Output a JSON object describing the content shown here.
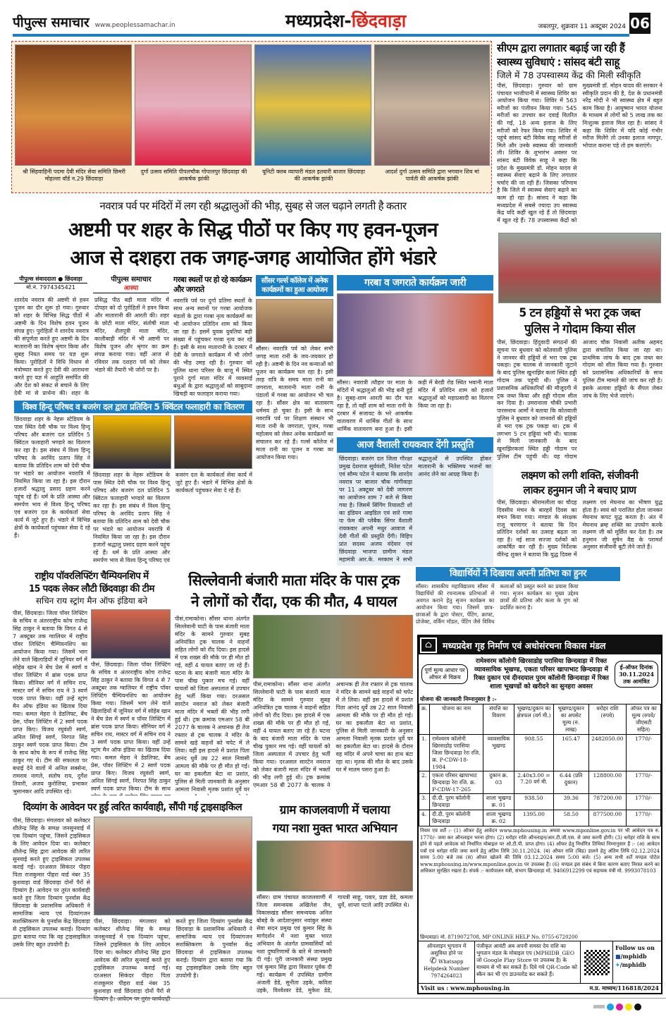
{
  "masthead": {
    "logo": "पीपुल्स समाचार",
    "website": "www.peoplessamachar.in",
    "section_prefix": "मध्यप्रदेश-",
    "section_city": "छिंदवाड़ा",
    "dateline": "जबलपुर, शुक्रवार 11 अक्टूबर 2024",
    "page_no": "06",
    "colors": {
      "accent": "#e2231a",
      "rule": "#1d7fc4"
    }
  },
  "photo_strip": {
    "captions": [
      "श्री सिंहवाहिनी पदमा देवी मंदिर सेवा समिति छिमरी मोहल्ला वॉर्ड न.29 छिंदवाड़ा",
      "दुर्गा उत्सव समिति पीपलचौक गोपालपुर छिंदवाड़ा की आकर्षक झांकी",
      "यूनिटी क्लब व्यापारी मंडल इतवारी बाजार छिंदवाड़ा की आकर्षक झांकी",
      "आदर्श दुर्गा उत्सव समिति द्वारा भगवान शिव मां पार्वती की आकर्षक झांकी"
    ]
  },
  "lead": {
    "kicker": "नवरात्र पर्व पर मंदिरों में लग रही श्रद्धालुओं की भीड़, सुबह से जल चढ़ाने लगती है कतार",
    "headline1": "अष्टमी पर शहर के सिद्ध पीठों पर किए गए हवन-पूजन",
    "headline2": "आज से दशहरा तक जगह-जगह आयोजित होंगे भंडारे",
    "byline": "पीपुल्स संवाददाता ● छिंदवाड़ा",
    "phone": "मो.नं. 7974345421",
    "logo_box": "पीपुल्स समाचार",
    "logo_tag": "आस्था",
    "body": "शारदेय नवरात्र की अष्टमी से हवन पूजन का दौर शुरू हो गया। गुरुवार को शहर के विभिन्न सिद्ध पीठों में अष्टमी के दिन विशेष हवन पूजन संपन्न हुए। पुरोहितों ने शारदेय नवरात्र की संपूर्णता करते हुए अष्टमी के दिन मातारानी का विशेष श्रृंगार किया और सुबह नियत समय पर यज्ञ शुरू किया। पुरोहितों ने विधि विधान से मंत्रोच्चार करते हुए देवी की आराधना करते हुए यज्ञ में आहुति समर्पित की और देश को संकट से बचाने के लिए देवी मां से प्रार्थना की। शहर के प्रसिद्ध पीठ बड़ी माता मंदिर में दोपहर को दो पुरोहितों ने हवन किया और मातारानी की आरती की। शहर के छोटी माता मंदिर, संतोषी माता मंदिर, शैलपुत्री माता मंदिर, कालीबाड़ी मंदिर में भी अष्टमी पर विशेष पूजन और श्रृंगार का क्रम संपन्न कराया गया। वहीं आज से रविवार तक दशहरा पर्व को लेकर भंडारे की तैयारी भी जोरों पर है।",
    "sub_head": "गरबा स्थलों पर हो रहे कार्यक्रम और जगराते",
    "sub_body": "नवरात्रि पर्व पर दुर्गा प्रतिमा स्थलों के साथ अन्य स्थानों पर गरबा आयोजक मंडलों के द्वारा गरबा नृत्य कार्यक्रमों का भी आयोजन प्रतिदिन शाम को किया जा रहा है। इसमें युवक युवतियां बड़ी संख्या में पहुंचकर गरबा नृत्य कर रहे हैं। इसी के साथ मातारानी के दरबार में देवी के जगराते कार्यक्रम में भी लोगों की भीड़ उमड़ रही है। गुरुवार को पुलिस थाना परिसर के बाजू में स्थित पुराने दुर्गा माता मंदिर में व्यवसाई बंधुओं के द्वारा श्रद्धालुओं को साबूदाना खिचड़ी का फलाहार कराया गया।"
  },
  "sausar_college": {
    "title": "सौंसर गर्ल्स कॉलेज में अनेक कार्यक्रमों का हुआ आयोजन",
    "body": "सौंसर। नवरात्रि पर्व को लेकर सभी जगह माता रानी के जय-जयकार हो रही है। अष्टमी के दिन नव कन्याओं को पूजन का कार्यक्रम चल रहा है। इसी तरह रात्रि के समय माता रानी का जगराता, मातारानी माता रानी के पंडालों में गरबा का आयोजन भी चल रहा है। सौंसर क्षेत्र का वातावरण धर्ममय हो चुका है। इसी के साथ नवरात्रि पर्व पर शिक्षण संस्थान भी माता रानी के जगराता, पूजन, गरबा महोत्सव को लेकर अनेक कार्यक्रमों का संचालन कर रहे हैं। गर्ल्स कॉलेज में माता रानी का पूजन व गरबा का आयोजन किया गया।"
  },
  "garba": {
    "title": "गरबा व जगराते कार्यक्रम जारी",
    "body": "सौंसर। नवरात्री त्यौहार पर माता के मंदिरों में श्रद्धालुओं की भीड़ बनी हुई है। सुबह-शाम आरती का दौर चल रहा है, तो वहीं शाम को माता रानी के दरबार में सजावट के भरे आकर्षक वातावरण में धार्मिक गीतों के साथ धार्मिक वातावरण बना हुआ है। इसी कड़ी में बेरडी रोड स्थित भवानी माता मंदिर में प्रतिदिन शाम को हजारों श्रद्धालुओं को महाप्रसादी का वितरण किया जा रहा है।"
  },
  "vaishali": {
    "title": "आज वैशाली रायकवार देंगी प्रस्तुति",
    "body": "छिंदवाड़ा। बजरंग दल जिला गौरक्षा प्रमुख देशराज सूर्यवंशी, नितेश पटेल एवं सौम्य पटेल ने बताया कि शारदेय नवरात्र पर बाजार चौक गांगीवाड़ा पर 11 अक्टूबर को देवी जागरण का आयोजन शाम 7 बजे से किया गया है। जिसमें सिंगिंग रियालटी शो का इंडियन आइडिल एवं सारे गामा पा फेम की प्लेबैक सिंगर वैशाली रायकवार अपनी मधुर आवाज में देवी गीतों की प्रस्तुति देंगी। विहिप प्रांत सदस्य अजय वंदेवार एवं छिंदवाड़ा भाजपा ग्रामीण मंडल महामंत्री आर.के. मरकाम ने सभी श्रद्धालुओं से उपस्थित होकर मातारानी के भक्तिमय भजनों का आनंद लेने का आग्रह किया है।"
  },
  "vhp": {
    "title": "विश्व हिन्दू परिषद व बजरंग दल द्वारा प्रतिदिन 5 क्विंटल फलाहारी का वितरण",
    "body": "छिंदवाड़ा शहर के नेहरू स्टेडियम के पास स्थित देवी चौक पर विश्व हिन्दू परिषद और बजरंग दल प्रतिदिन 5 क्विंटल फलाहारी भण्डारे का वितरण कर रहा है। इस संबंध में विश्व हिन्दू परिषद के अरविंद प्रताप सिंह ने बताया कि प्रतिदिन शाम को देवी चौक पर भंडारे का आयोजन नवरात्रि में नियमित किया जा रहा है। इस दौरान हजारों श्रद्धालु प्रसाद ग्रहण करने पहुंच रहे हैं। धर्म के प्रति आस्था और समर्पण भाव से विश्व हिन्दू परिषद एवं बजरंग दल के कार्यकर्ता सेवा कार्य में जुटे हुए हैं। भंडारे में विभिन्न क्षेत्रों के कार्यकर्ता पहुंचकर सेवा दे रहे हैं।"
  },
  "health": {
    "headline1": "सीएम द्वारा लगातार बढ़ाई जा रही हैं",
    "headline2": "स्वास्थ्य सुविधाएं : सांसद बंटी साहू",
    "subhead": "जिले में 78 उपस्वास्थ्य केंद्र की मिली स्वीकृति",
    "body": "पीसं, छिंदवाड़ा। गुरुवार को ग्राम पंचायत भाजीपानी में स्वास्थ्य शिविर का आयोजन किया गया। शिविर में 563 मरीजों का पंजीयन किया गया। 545 मरीजों का उपचार कर दवाई वितरित की गई, 18 अन्य इलाज के लिए मरीजों को रेफर किया गया। शिविर में पहुंचे सांसद बंटी विवेक साहू मरीजों से मिले और उनके स्वास्थ्य की जानकारी ली। शिविर के शुभारंभ अवसर पर सांसद बंटी विवेक साहू ने कहा कि प्रदेश के मुख्यमंत्री डॉ. मोहन यादव से स्वास्थ्य सेवाएं बढ़ाने के लिए लगातार चर्चाएं की जा रही हैं। जिसका परिणाम है कि जिले में स्वास्थ्य सेवाएं बढ़ाने का काम हो रहा है। सांसद ने कहा कि मध्यप्रदेश में सबसे ज्यादा उप स्वास्थ्य केंद्र यदि कहीं खुल रहे हैं तो छिंदवाड़ा में खुल रहे हैं। 78 उपस्वास्थ्य केंद्रों को मुख्यमंत्री डॉ. मोहन यादव की सरकार ने स्वीकृति प्रदान की है, देश के प्रधानमंत्री नरेंद्र मोदी ने भी स्वास्थ्य क्षेत्र में बहुत काम किया है। आयुष्मान भारत योजना के माध्यम से लोगों को 5 लाख तक का निःशुल्क इलाज मिल रहा है। सांसद ने कहा कि शिविर में यदि कोई गंभीर मरीज मिलेंगे तो उनका इलाज नागपुर, भोपाल कराना पड़े तो हम कराएंगे।"
  },
  "bones": {
    "headline1": "5 टन हड्डियों से भरा ट्रक जब्त",
    "headline2": "पुलिस ने गोदाम किया सील",
    "body": "पीसं, छिंदवाड़ा। हिंदुवादी संगठनों की सूचना पर बुधवार को कोतवाली पुलिस ने जानवर की हड्डियों से भरा एक ट्रक पकड़ा। ट्रक चालक से जानकारी जुटाने के बाद पुलिस खुनाझिर कलां स्थित हड्डी गोदाम तक पहुंची थी। पुलिस ने प्रशासनिक अधिकारियों की मौजूदगी में ट्रक जब्त किया और हड्डी गोदाम सील कर दिया है। उमरानाला चौकी प्रभारी पारसनाथ आर्मो ने बताया कि कोतवाली पुलिस ने बुधवार को जानवरों की हड्डियों से भरा एक ट्रक पकड़ा था। ट्रक में लगभग 5 टन हड्डियां भरी थी। चालक से मिली जानकारी के बाद खुनाझिरकलां स्थित हड्डी गोदाम पर पुलिस टीम पहुंची थी। यह गोदाम आजाद चौक निवासी अतीक अहमद द्वारा संचालित किया जा रहा था। प्राथमिक जांच के बाद ट्रक जब्त कर गोदाम को सील किया गया है। गुरुवार को प्रशासनिक अधिकारियों के साथ पुलिस टीम मामले की जांच कर रही है। इसके अलावा हड्डियों के सैंपल लेकर जांच के लिए भेजे जाएंगे।"
  },
  "lakshman": {
    "headline1": "लक्ष्मण को लगी शक्ति, संजीवनी",
    "headline2": "लाकर हनुमान जी ने बचाए प्राण",
    "body": "पीसं, छिंदवाड़ा। श्रीरामलीला का चौदह दिवसीय मंचन के बारहवें दिवस का मंचन किया गया। मण्डल के संरक्षक राजू चरणागर ने बताया कि दिन प्रतिदिन दर्शकों का उत्साह बढ़ता जा रहा है। नई साज सज्जा दर्शकों को आकर्षित कर रही है। मुख्य निर्देशक वीरेन्द्र शुक्ल ने बताया कि युद्ध दिवस में लक्ष्मण एवं मेघनाथ का भीषण युद्ध होता है। स्वयं को पराजित होता जानकर मेघनाथ कपट युद्ध करता है। अंत में मेघनाथ ब्रम्ह शक्ति का उपयोग करके लक्ष्मण जी को मूर्छित कर देता है। तब हनुमान जी सुषेन वैद्य के परामर्श अनुसार संजीवनी बूटी लेने जाते हैं।"
  },
  "students": {
    "title": "विद्यार्थियों ने दिखाया अपनी प्रतिभा का हुनर",
    "body": "सौंसर। शासकीय महाविद्यालय सौंसर में विद्यार्थियों की रचनात्मक प्रतिभाओं से अवगत कराने हेतु सृजन कार्यक्रम का आयोजन किया गया। जिसमें छात्र-छात्राओं के द्वारा पोस्टर, पेंटिंग, क्राफ्ट, प्रोजेक्ट, वर्किंग मॉडल, पेंटिंग जैसे विविध कलाओं को प्रस्तुत करने का प्रयास किया गया। सृजन कार्यक्रम का मुख्य उद्देश्य छात्रों की प्रतिभा और कला के गुण को प्रदर्शित करना है।"
  },
  "powerlifting": {
    "headline1": "राष्ट्रीय पॉवरलिफ्टिंग चैम्पियनशिप में",
    "headline2": "15 पदक लेकर लौटी छिंदवाड़ा की टीम",
    "subhead": "सचिन राय स्ट्रांग मैन ऑफ इंडिया बने",
    "body": "पीसं, छिंदवाड़ा। जिला पॉवर लिफ्टिंग के सचिव व अंतरराष्ट्रीय कोच राजेन्द्र सिंह ठाकुर ने बताया कि विगत 4 से 7 अक्टूबर तक ग्वालियर में राष्ट्रीय पॉवर लिफ्टिंग चैम्पियनशिप का आयोजन किया गया। जिसमें भाग लेने वाले खिलाड़ियों में जूनियर वर्ग में सोहेब खान ने बेंच प्रेस में स्वर्ण व पॉवर लिफ्टिंग में ब्रांस पदक प्राप्त किया। सीनियर वर्ग में सचिन राय, मास्टर वर्ग में सचिन राय ने 3 स्वर्ण पदक प्राप्त किया। वहीं उन्हें स्ट्रांग मैन ऑफ इंडिया का खिताब दिया गया। कमल मेहरा ने डेडलिफ्ट, बेंच प्रेस, पॉवर लिफ्टिंग में 2 स्वर्ण पदक प्राप्त किए। विजय रघुवंशी स्वर्ण, अनिल सिंगई स्वर्ण, निरपत सिंह ठाकुर स्वर्ण पदक प्राप्त किया। टीम के साथ कोच के रूप में राजेन्द्र सिंह ठाकुर गए थे। टीम की सफलता पर बधाई देने वालों में अनिल सक्सेना, रामराव नागले, संतोष राय, दुर्गेश तिवारी, अजय कुरोलिया, प्रभाकर भुसानकर आदि उपस्थित रहे।"
  },
  "silvani": {
    "headline1": "सिल्लेवानी बंजारी माता मंदिर के पास ट्रक",
    "headline2": "ने लोगों को रौंदा, एक की मौत, 4 घायल",
    "body": "पीसं,रामाकोना। सौंसर थाना अंतर्गत सिल्लेवानी घाटी के पास बंजारी माता मंदिर के सामने गुरुवार सुबह अनियंत्रित ट्रक चालक ने वाहनों सहित लोगों को रौंद दिया। इस हादसे में एक शख्स की मौके पर ही मौत हो गई, वहीं 4 घायल बताए जा रहे हैं। घटना के बाद बंजारी माता मंदिर के पास चीख पुकार मच गई। वहीं घायलों को जिला अस्पताल में उपचार हेतु भर्ती किया गया। दरअसल सारटेन नवराज को लेकर बंजारी माता मंदिर में भक्तों की भीड़ लगी हुई थी। ट्रक क्रमांक एमआर 58 बी 2077 के चालक ने अचानक ही तेज रफ्तार से ट्रक चालक ने मंदिर के सामने खड़े वाहनों को चपेट में ले लिया। वहीं इस हादसे में प्रशांत पिता आनंद धुर्वे उम्र 22 साल निवासी आमला की मौके पर ही मौत हो गई। घर का इकलौता बेटा था प्रशांत, पुलिस से मिली जानकारी के अनुसार आमला निवासी मृतक प्रशांत धुर्वे घर का इकलौता बेटा था। हादसे के दौरान वह मंदिर में अपने चाचा का हाथ बंटा रहा था। मृतक की मौत के बाद उसके घर में मातम पसरा हुआ है।"
  },
  "divyang": {
    "headline": "दिव्यांग के आवेदन पर हुई त्वरित कार्यवाही, सौंपी गई ट्राइसाइकिल",
    "body": "पीसं, छिंदवाड़ा। मंगलवार को कलेक्टर शीलेन्द्र सिंह के समक्ष जनसुनवाई में एक दिव्यांग पहुंचा, जिसने ट्राइसिकल के लिए आवेदन दिया था। कलेक्टर शीलेन्द्र सिंह द्वारा आवेदक की त्वरित सुनवाई करते हुए ट्राइसिकल उपलब्ध कराई गई। दरअसल सिकंदर पीहरा पिता राजकुमार पीहरा वार्ड नंबर 35 कुशवाहा वार्ड छिंदवाड़ा दोनों पैरों से दिव्यांग है। आवेदन पर तुरंत कार्यवाही करते हुए जिला दिव्यांग पुनर्वास केंद्र छिंदवाड़ा के प्रशासनिक अधिकारी ने सामाजिक न्याय एवं दिव्यांगजन सशक्तिकरण के पुनर्वास केंद्र छिंदवाड़ा से ट्राइसिकल उपलब्ध कराई। दिव्यांग द्वारा बताया गया कि वह ट्राइसाइकिल उसके लिए बहुत उपयोगी है।"
  },
  "kajalwani": {
    "headline1": "ग्राम काजलवाणी में चलाया",
    "headline2": "गया नशा मुक्त भारत अभियान",
    "body": "सौंसर। ग्राम पंचायत काजलवाणी में जिला समन्वयक अखिलेश जैन, विकासखंड सौंसर समन्वयक अनिल बोबड़े के आदेशानुसार नवांकुर संस्था सेवा सदन प्रमुख एवं कुमार सिंह के मार्गदर्शन में नशा मुक्त भारत अभियान के अंतर्गत ग्रामवासियों को नशा दुष्परिणामों के बारे में जानकारी दी गई। पूरी जानकारी संस्था प्रमुख एवं कुमार सिंह द्वारा विस्तार पूर्वक दी गई। कार्यक्रम में उपस्थित ग्रामीण अंजली डेडे, सुनीता उइके, कविता उइके, विश्वेश्वर डेडे, मुकेश डेडे, गायत्री साहू, पवार, प्रज्ञा डेडे, कमला धुर्वे, शान्ता पटले आदि उपस्थित थे।"
  },
  "ad": {
    "org": "मध्यप्रदेश गृह निर्माण एवं अधोसंरचना विकास मंडल",
    "left_badge": "पूर्ण मूल्य आधार पर ऑफर से विक्रय",
    "center_title": "रामेश्वरम कॉलोनी खिरसाडोह परासिया छिन्दवाड़ा में रिक्त व्यावसायिक भूखण्ड, एकता परिसर खापाभाट छिन्दवाड़ा में रिक्त दुकान एवं दीनदयाल पुरम कॉलोनी छिन्दवाड़ा में रिक्त शाला भूखण्डों को खरीदने का सुनहरा अवसर",
    "right_badge": "ई-ऑफर दिनांक 30.11.2024 तक आमंत्रित",
    "intro": "योजना की जानकारी निम्नानुसार है :-",
    "headers": [
      "क्र.",
      "योजना का नाम",
      "संपत्ति का विवरण",
      "भूखण्ड/दुकान का क्षेत्रफल (वर्ग मी.)",
      "भूखण्ड/दुकान का अपसेट मूल्य (रु. लाख)",
      "धरोहर राशि (रुपये)",
      "ऑफर पत्र का मूल्य (रुपये/ जीएसटी सहित)"
    ],
    "rows": [
      [
        "1.",
        "रामेश्वरम कॉलोनी खिरसाडोह परासिया जिला छिन्दवाड़ा रेरा रजि. क्र. P-CDW-18-1984",
        "व्यावसायिक भूखण्ड",
        "908.55",
        "165.47",
        "2482050.00",
        "1770/-"
      ],
      [
        "2.",
        "एकता परिसर खापाभाट छिन्दवाड़ा रेरा रजि. क्र. P-CDW-17-265",
        "दुकान क्र. 03",
        "2.40x3.00 = 7.20 वर्ग मी.",
        "6.44 (प्रति दुकान)",
        "128800.00",
        "1770/-"
      ],
      [
        "3.",
        "दी.दी. पुरम कॉलोनी छिन्दवाड़ा",
        "शाला भूखण्ड क्र. 01",
        "938.50",
        "39.36",
        "787200.00",
        "1770/-"
      ],
      [
        "4.",
        "दी.दी. पुरम कॉलोनी छिन्दवाड़ा",
        "शाला भूखण्ड क्र. 02",
        "1395.00",
        "58.50",
        "877500.00",
        "1770/-"
      ]
    ],
    "terms": "नियम एवं शर्तें :- (1) ऑफर हेतु आवेदन www.mphousing.in अथवा www.mponline.gov.in पर भी आवेदन पत्र रु. 1770/- जमा कर ऑनलाइन भरना होगा। (2) धरोहर राशि ऑनलाइन/आर.टी.जी.एस. से जमा करनी होगी। (3) धरोहर राशि के साथ होने से पहले आवेदक को निर्धारित मोबाइल पर ओ.टी.पी. प्राप्त होगा। (4) ऑफर हेतु निर्धारित तिथियां निम्नानुसार हैं :- (अ) आवेदन पत्रों एवं धरोहर राशि जमा करने हेतु अंतिम तिथि 30.11.2024. (ब) ऑफर राशि (बिड) डालने हेतु अंतिम तिथि 02.12.2024 समय 5:00 बजे तक (स) ऑफर खोलने की तिथि 03.12.2024 समय 5:00 बजे। (5) अन्य सभी शर्तें मण्डल पोर्टल www.mphousing.in/www.mponline.gov.in पर उपलब्ध हैं। (6) मण्डल इस संबंध में बिना कारण बताए निरस्त करने का अधिकार सुरक्षित रखता है। संपर्क :- कार्यपालन यंत्री, संभाग छिन्दवाड़ा मो. 9406912299 एवं सहायक यंत्री मो. 9993078103",
    "helpline": "छिन्दवाड़ा) मो. 8719072708, MP ONLINE HELP No. 0755-6720200",
    "online_note": "ऑनलाइन भुगतान में असुविधा होने पर",
    "whatsapp": "Whatsapp Helpdesk Number 7974264023",
    "app_note": "पंजीकृत आवंटी अब अपनी समस्त देय राशि का भुगतान मंडल के मोबाइल एप (MPHIDB_GEO जो Google Play Store पर उपलब्ध है) के माध्यम से भी कर सकते हैं। दिये गये QR-Code को स्कैन कर भी एप डाउनलोड कर सकते हैं।",
    "follow": "Follow us on",
    "facebook": "/mphidb",
    "twitter": "/mphidb",
    "visit": "Visit us : www.mphousing.in",
    "ref": "म.प्र. माध्यम/116818/2024"
  }
}
